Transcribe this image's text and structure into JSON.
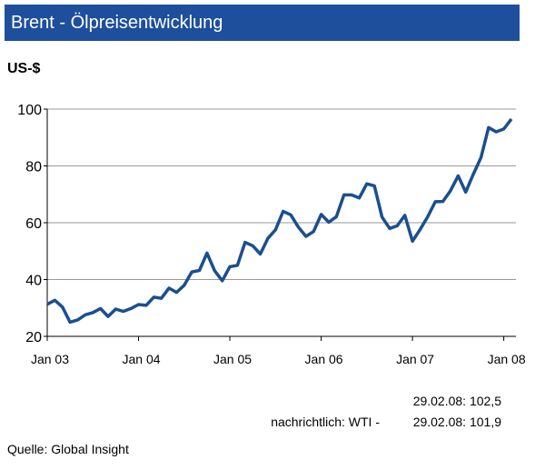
{
  "chart_data": {
    "type": "line",
    "title": "Brent - Ölpreisentwicklung",
    "y_label": "US-$",
    "x": [
      "2003-01",
      "2003-02",
      "2003-03",
      "2003-04",
      "2003-05",
      "2003-06",
      "2003-07",
      "2003-08",
      "2003-09",
      "2003-10",
      "2003-11",
      "2003-12",
      "2004-01",
      "2004-02",
      "2004-03",
      "2004-04",
      "2004-05",
      "2004-06",
      "2004-07",
      "2004-08",
      "2004-09",
      "2004-10",
      "2004-11",
      "2004-12",
      "2005-01",
      "2005-02",
      "2005-03",
      "2005-04",
      "2005-05",
      "2005-06",
      "2005-07",
      "2005-08",
      "2005-09",
      "2005-10",
      "2005-11",
      "2005-12",
      "2006-01",
      "2006-02",
      "2006-03",
      "2006-04",
      "2006-05",
      "2006-06",
      "2006-07",
      "2006-08",
      "2006-09",
      "2006-10",
      "2006-11",
      "2006-12",
      "2007-01",
      "2007-02",
      "2007-03",
      "2007-04",
      "2007-05",
      "2007-06",
      "2007-07",
      "2007-08",
      "2007-09",
      "2007-10",
      "2007-11",
      "2007-12",
      "2008-01",
      "2008-02"
    ],
    "series": [
      {
        "name": "Brent",
        "color": "#1a4f8f",
        "values": [
          31.3,
          32.7,
          30.3,
          25.0,
          25.8,
          27.6,
          28.4,
          29.8,
          27.0,
          29.6,
          28.8,
          29.8,
          31.2,
          30.9,
          33.8,
          33.4,
          37.0,
          35.5,
          38.0,
          42.7,
          43.2,
          49.3,
          43.1,
          39.6,
          44.5,
          45.0,
          53.1,
          51.9,
          49.0,
          54.5,
          57.5,
          64.0,
          62.8,
          58.5,
          55.2,
          56.9,
          62.9,
          60.2,
          62.1,
          69.8,
          69.8,
          68.7,
          73.7,
          73.0,
          62.0,
          58.0,
          58.9,
          62.6,
          53.5,
          57.6,
          62.1,
          67.4,
          67.5,
          71.3,
          76.5,
          70.8,
          77.1,
          82.9,
          93.5,
          92.0,
          93.0,
          96.5
        ]
      }
    ],
    "xticks": [
      {
        "value": "2003-01",
        "label": "Jan 03"
      },
      {
        "value": "2004-01",
        "label": "Jan 04"
      },
      {
        "value": "2005-01",
        "label": "Jan 05"
      },
      {
        "value": "2006-01",
        "label": "Jan 06"
      },
      {
        "value": "2007-01",
        "label": "Jan 07"
      },
      {
        "value": "2008-01",
        "label": "Jan 08"
      }
    ],
    "ylim": [
      20,
      100
    ],
    "yticks": [
      20,
      40,
      60,
      80,
      100
    ],
    "grid": true,
    "annotations": [
      "29.02.08: 102,5",
      "nachrichtlich: WTI -",
      "29.02.08: 101,9"
    ],
    "source": "Quelle: Global Insight"
  }
}
